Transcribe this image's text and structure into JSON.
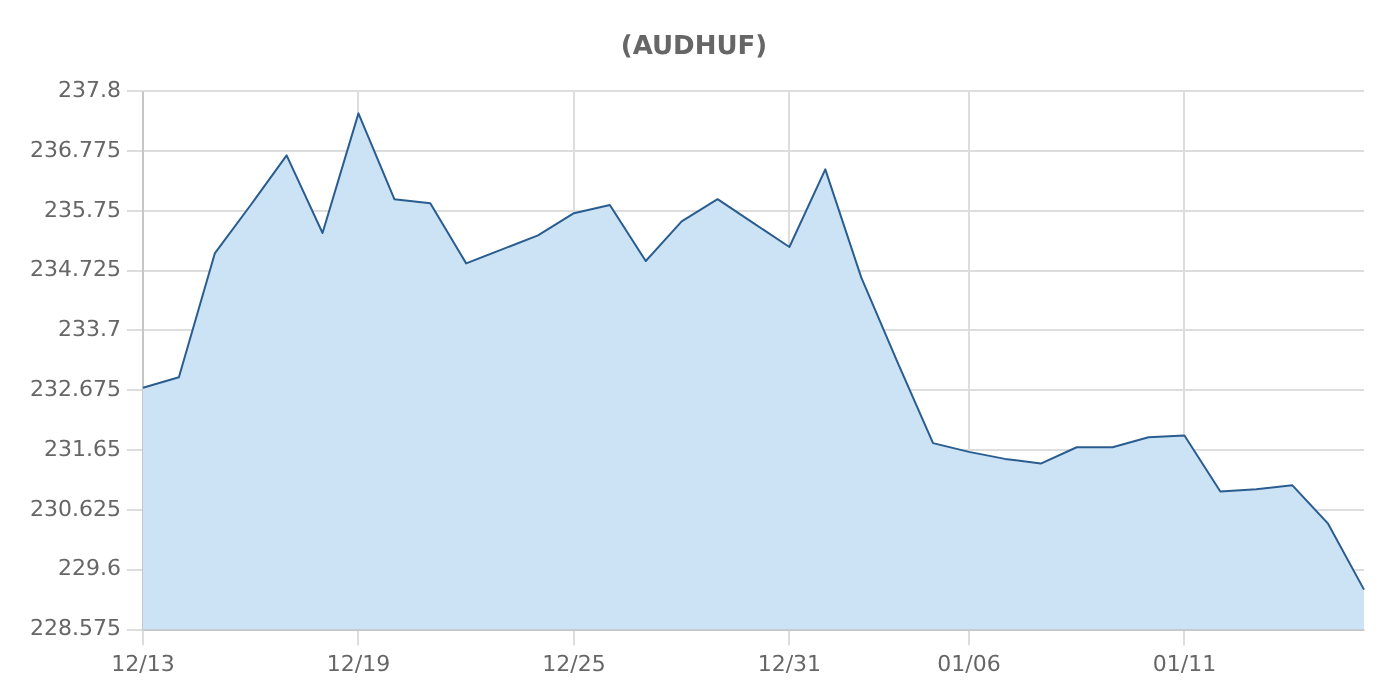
{
  "chart_data": {
    "type": "area",
    "title": "(AUDHUF)",
    "categories": [
      "12/13",
      null,
      null,
      null,
      null,
      null,
      "12/19",
      null,
      null,
      null,
      null,
      null,
      "12/25",
      null,
      null,
      null,
      null,
      null,
      "12/31",
      null,
      null,
      null,
      null,
      "01/06",
      null,
      null,
      null,
      null,
      null,
      "01/11",
      null,
      null,
      null,
      null,
      null
    ],
    "series": [
      {
        "color": "#2a5d8f",
        "values": [
          232.72,
          232.9,
          235.02,
          235.85,
          236.7,
          235.37,
          237.42,
          235.95,
          235.88,
          234.85,
          235.09,
          235.33,
          235.71,
          235.85,
          234.89,
          235.57,
          235.95,
          235.54,
          235.13,
          236.46,
          234.61,
          233.17,
          231.77,
          231.62,
          231.5,
          231.42,
          231.7,
          231.7,
          231.87,
          231.9,
          230.94,
          230.98,
          231.05,
          230.39,
          229.26
        ]
      }
    ],
    "ylim": [
      228.575,
      237.8
    ],
    "yticks": [
      228.575,
      229.6,
      230.625,
      231.65,
      232.675,
      233.7,
      234.725,
      235.75,
      236.775,
      237.8
    ],
    "grid": true,
    "legend": false,
    "marker": "none"
  }
}
